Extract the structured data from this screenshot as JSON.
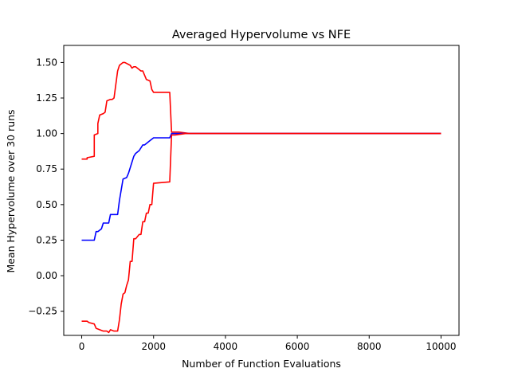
{
  "chart_data": {
    "type": "line",
    "title": "Averaged Hypervolume vs NFE",
    "xlabel": "Number of Function Evaluations",
    "ylabel": "Mean Hypervolume over 30 runs",
    "xlim": [
      -500,
      10500
    ],
    "ylim": [
      -0.42,
      1.62
    ],
    "xticks": [
      0,
      2000,
      4000,
      6000,
      8000,
      10000
    ],
    "xtick_labels": [
      "0",
      "2000",
      "4000",
      "6000",
      "8000",
      "10000"
    ],
    "yticks": [
      -0.25,
      0.0,
      0.25,
      0.5,
      0.75,
      1.0,
      1.25,
      1.5
    ],
    "ytick_labels": [
      "−0.25",
      "0.00",
      "0.25",
      "0.50",
      "0.75",
      "1.00",
      "1.25",
      "1.50"
    ],
    "grid": false,
    "legend": "none",
    "series": [
      {
        "color": "#ff0000",
        "x": [
          0,
          150,
          150,
          350,
          350,
          450,
          450,
          500,
          600,
          650,
          700,
          800,
          850,
          900,
          1000,
          1050,
          1100,
          1150,
          1200,
          1350,
          1400,
          1450,
          1500,
          1650,
          1700,
          1800,
          1900,
          1950,
          2000,
          2450,
          2500,
          2700,
          3000,
          10000
        ],
        "y": [
          0.82,
          0.82,
          0.83,
          0.84,
          0.99,
          1.0,
          1.07,
          1.13,
          1.14,
          1.15,
          1.23,
          1.24,
          1.24,
          1.25,
          1.44,
          1.48,
          1.49,
          1.5,
          1.5,
          1.48,
          1.46,
          1.47,
          1.47,
          1.44,
          1.44,
          1.38,
          1.37,
          1.31,
          1.29,
          1.29,
          1.01,
          1.01,
          1.0,
          1.0
        ]
      },
      {
        "color": "#0000ff",
        "x": [
          0,
          350,
          400,
          450,
          550,
          600,
          750,
          800,
          1000,
          1050,
          1150,
          1250,
          1300,
          1400,
          1450,
          1500,
          1600,
          1700,
          1750,
          1850,
          1900,
          2000,
          2450,
          2500,
          2800,
          3000,
          10000
        ],
        "y": [
          0.25,
          0.25,
          0.31,
          0.31,
          0.33,
          0.37,
          0.37,
          0.43,
          0.43,
          0.53,
          0.68,
          0.69,
          0.72,
          0.8,
          0.84,
          0.86,
          0.88,
          0.92,
          0.92,
          0.94,
          0.95,
          0.97,
          0.97,
          1.0,
          1.0,
          1.0,
          1.0
        ]
      },
      {
        "color": "#ff0000",
        "x": [
          0,
          150,
          200,
          350,
          400,
          500,
          600,
          700,
          750,
          800,
          900,
          1000,
          1050,
          1100,
          1150,
          1200,
          1250,
          1300,
          1350,
          1400,
          1450,
          1500,
          1600,
          1650,
          1700,
          1750,
          1800,
          1850,
          1900,
          1950,
          2000,
          2450,
          2500,
          2600,
          2900,
          3000,
          10000
        ],
        "y": [
          -0.32,
          -0.32,
          -0.33,
          -0.34,
          -0.37,
          -0.38,
          -0.39,
          -0.39,
          -0.4,
          -0.38,
          -0.39,
          -0.39,
          -0.31,
          -0.2,
          -0.13,
          -0.12,
          -0.07,
          -0.03,
          0.1,
          0.1,
          0.26,
          0.26,
          0.29,
          0.29,
          0.38,
          0.38,
          0.44,
          0.44,
          0.5,
          0.5,
          0.65,
          0.66,
          0.99,
          0.99,
          1.0,
          1.0,
          1.0
        ]
      }
    ]
  }
}
